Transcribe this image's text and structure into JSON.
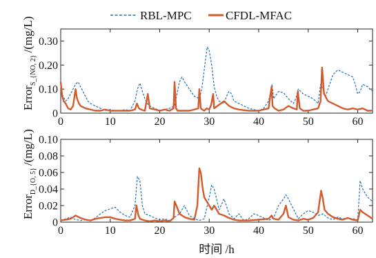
{
  "legend": {
    "items": [
      {
        "label": "RBL-MPC",
        "color": "#1f6fb8",
        "dash": "4 2.5"
      },
      {
        "label": "CFDL-MFAC",
        "color": "#d25a2b",
        "dash": ""
      }
    ]
  },
  "x_axis": {
    "label": "时间 /h",
    "ticks": [
      0,
      10,
      20,
      30,
      40,
      50,
      60
    ],
    "tick_labels": [
      "0",
      "10",
      "20",
      "30",
      "40",
      "50",
      "60"
    ]
  },
  "chart_data": [
    {
      "type": "line",
      "ylabel_main": "Error",
      "ylabel_subscript": "S_{NO, 2}",
      "ylabel_unit": "/(mg/L)",
      "xlim": [
        0,
        63
      ],
      "ylim": [
        0,
        0.35
      ],
      "yticks": [
        0,
        0.1,
        0.2,
        0.3
      ],
      "ytick_labels": [
        "0",
        "0.10",
        "0.20",
        "0.30"
      ],
      "grid": false,
      "series": [
        {
          "name": "RBL-MPC",
          "color": "#1f6fb8",
          "x": [
            0,
            0.5,
            1,
            1.5,
            2,
            2.5,
            3,
            3.5,
            4,
            4.5,
            5,
            5.5,
            6,
            7,
            8,
            9,
            10,
            11,
            12,
            13,
            14,
            15,
            15.5,
            16,
            16.5,
            17,
            17.5,
            18,
            19,
            20,
            21,
            22,
            23,
            23.5,
            24,
            24.5,
            25,
            26,
            27,
            28,
            28.5,
            29,
            29.3,
            29.6,
            30,
            30.5,
            31,
            31.5,
            32,
            33,
            33.5,
            34,
            34.5,
            35,
            36,
            37,
            38,
            39,
            40,
            41,
            42,
            42.7,
            43,
            44,
            45,
            46,
            47,
            47.5,
            48,
            48.5,
            49,
            50,
            51,
            52,
            52.5,
            53,
            53.5,
            54,
            55,
            56,
            57,
            58,
            59,
            59.5,
            60,
            60.5,
            61,
            62,
            63
          ],
          "y": [
            0.09,
            0.07,
            0.05,
            0.06,
            0.08,
            0.1,
            0.12,
            0.13,
            0.11,
            0.09,
            0.07,
            0.05,
            0.04,
            0.03,
            0.02,
            0.01,
            0.015,
            0.01,
            0.01,
            0.015,
            0.01,
            0.05,
            0.1,
            0.125,
            0.09,
            0.06,
            0.04,
            0.03,
            0.02,
            0.01,
            0.015,
            0.02,
            0.03,
            0.08,
            0.13,
            0.15,
            0.13,
            0.1,
            0.07,
            0.06,
            0.1,
            0.18,
            0.23,
            0.275,
            0.26,
            0.2,
            0.11,
            0.07,
            0.05,
            0.04,
            0.07,
            0.09,
            0.08,
            0.05,
            0.04,
            0.03,
            0.02,
            0.015,
            0.01,
            0.02,
            0.05,
            0.12,
            0.06,
            0.09,
            0.085,
            0.06,
            0.04,
            0.06,
            0.1,
            0.09,
            0.08,
            0.07,
            0.06,
            0.04,
            0.12,
            0.1,
            0.07,
            0.1,
            0.16,
            0.18,
            0.17,
            0.16,
            0.15,
            0.12,
            0.08,
            0.09,
            0.12,
            0.11,
            0.09
          ]
        },
        {
          "name": "CFDL-MFAC",
          "color": "#d25a2b",
          "x": [
            0,
            0.3,
            0.6,
            1,
            1.5,
            2,
            2.5,
            3,
            3.3,
            3.7,
            4,
            5,
            6,
            7,
            8,
            9,
            10,
            12,
            14,
            15,
            15.4,
            15.8,
            16.2,
            17,
            17.6,
            18,
            19,
            20,
            21,
            22,
            22.8,
            23,
            23.3,
            23.6,
            24,
            25,
            26,
            27,
            27.8,
            28,
            28.3,
            28.6,
            29,
            29.5,
            30,
            30.4,
            30.8,
            31,
            32,
            33,
            34,
            35,
            36,
            38,
            40,
            42,
            42.6,
            42.8,
            43.2,
            44,
            45,
            46,
            47,
            47.7,
            47.9,
            48.3,
            49,
            50,
            51,
            52,
            52.5,
            52.8,
            53.2,
            54,
            55,
            56,
            57,
            58,
            59,
            60,
            61,
            62,
            63
          ],
          "y": [
            0.13,
            0.07,
            0.05,
            0.04,
            0.02,
            0.015,
            0.03,
            0.1,
            0.06,
            0.04,
            0.03,
            0.02,
            0.015,
            0.01,
            0.01,
            0.015,
            0.01,
            0.01,
            0.01,
            0.015,
            0.04,
            0.02,
            0.015,
            0.01,
            0.08,
            0.02,
            0.015,
            0.01,
            0.015,
            0.01,
            0.02,
            0.13,
            0.02,
            0.01,
            0.01,
            0.01,
            0.01,
            0.015,
            0.02,
            0.1,
            0.02,
            0.015,
            0.01,
            0.02,
            0.015,
            0.035,
            0.08,
            0.02,
            0.035,
            0.05,
            0.03,
            0.02,
            0.015,
            0.01,
            0.01,
            0.02,
            0.11,
            0.03,
            0.02,
            0.01,
            0.015,
            0.03,
            0.02,
            0.015,
            0.09,
            0.02,
            0.01,
            0.01,
            0.015,
            0.02,
            0.05,
            0.19,
            0.08,
            0.05,
            0.04,
            0.03,
            0.02,
            0.015,
            0.02,
            0.015,
            0.02,
            0.01,
            0.01
          ]
        }
      ]
    },
    {
      "type": "line",
      "ylabel_main": "Error",
      "ylabel_subscript": "D_{O, 5}",
      "ylabel_unit": "/(mg/L)",
      "xlim": [
        0,
        63
      ],
      "ylim": [
        0,
        0.1
      ],
      "yticks": [
        0,
        0.02,
        0.04,
        0.06,
        0.08,
        0.1
      ],
      "ytick_labels": [
        "0",
        "0.02",
        "0.04",
        "0.06",
        "0.08",
        "0.10"
      ],
      "grid": false,
      "series": [
        {
          "name": "RBL-MPC",
          "color": "#1f6fb8",
          "x": [
            0,
            1,
            2,
            3,
            4,
            5,
            6,
            7,
            8,
            9,
            10,
            11,
            12,
            13,
            14,
            15,
            15.5,
            16,
            16.5,
            17,
            18,
            19,
            20,
            21,
            22,
            23,
            24,
            25,
            26,
            27,
            28,
            29,
            30,
            30.5,
            31,
            32,
            33,
            34,
            35,
            36,
            37,
            38,
            39,
            40,
            41,
            42,
            43,
            44,
            45,
            45.5,
            46,
            47,
            48,
            49,
            50,
            51,
            52,
            53,
            54,
            55,
            56,
            57,
            58,
            59,
            60,
            60.5,
            61,
            62,
            63
          ],
          "y": [
            0.002,
            0.004,
            0.006,
            0.003,
            0.002,
            0.003,
            0.002,
            0.005,
            0.01,
            0.014,
            0.016,
            0.018,
            0.012,
            0.008,
            0.006,
            0.02,
            0.055,
            0.05,
            0.02,
            0.01,
            0.008,
            0.005,
            0.003,
            0.004,
            0.002,
            0.006,
            0.01,
            0.02,
            0.008,
            0.004,
            0.002,
            0.004,
            0.03,
            0.045,
            0.04,
            0.015,
            0.028,
            0.01,
            0.004,
            0.01,
            0.002,
            0.004,
            0.01,
            0.008,
            0.005,
            0.002,
            0.005,
            0.02,
            0.028,
            0.033,
            0.028,
            0.016,
            0.004,
            0.01,
            0.014,
            0.012,
            0.008,
            0.01,
            0.005,
            0.003,
            0.006,
            0.004,
            0.005,
            0.004,
            0.003,
            0.05,
            0.04,
            0.03,
            0.025
          ]
        },
        {
          "name": "CFDL-MFAC",
          "color": "#d25a2b",
          "x": [
            0,
            1,
            2,
            3,
            4,
            5,
            6,
            7,
            8,
            9,
            10,
            11,
            12,
            13,
            14,
            15,
            15.3,
            15.7,
            16,
            17,
            18,
            19,
            20,
            21,
            22,
            22.8,
            23,
            23.5,
            24,
            25,
            26,
            27,
            27.6,
            28,
            28.3,
            28.7,
            29,
            29.5,
            30,
            30.5,
            31,
            32,
            33,
            34,
            35,
            36,
            38,
            40,
            42,
            42.6,
            43,
            44,
            45,
            45.5,
            46,
            47,
            48,
            49,
            50,
            51,
            52,
            52.6,
            52.9,
            53.3,
            54,
            55,
            56,
            57,
            58,
            59,
            60,
            60.5,
            61,
            62,
            63
          ],
          "y": [
            0.002,
            0.003,
            0.004,
            0.008,
            0.005,
            0.003,
            0.002,
            0.004,
            0.005,
            0.006,
            0.006,
            0.004,
            0.003,
            0.002,
            0.002,
            0.004,
            0.02,
            0.008,
            0.004,
            0.002,
            0.001,
            0.002,
            0.001,
            0.002,
            0.001,
            0.005,
            0.025,
            0.018,
            0.01,
            0.006,
            0.004,
            0.003,
            0.02,
            0.065,
            0.06,
            0.04,
            0.03,
            0.025,
            0.02,
            0.015,
            0.02,
            0.01,
            0.008,
            0.005,
            0.003,
            0.002,
            0.002,
            0.003,
            0.004,
            0.008,
            0.004,
            0.003,
            0.01,
            0.02,
            0.006,
            0.003,
            0.002,
            0.004,
            0.003,
            0.005,
            0.012,
            0.038,
            0.03,
            0.015,
            0.01,
            0.006,
            0.004,
            0.003,
            0.005,
            0.003,
            0.002,
            0.015,
            0.012,
            0.008,
            0.004
          ]
        }
      ]
    }
  ]
}
